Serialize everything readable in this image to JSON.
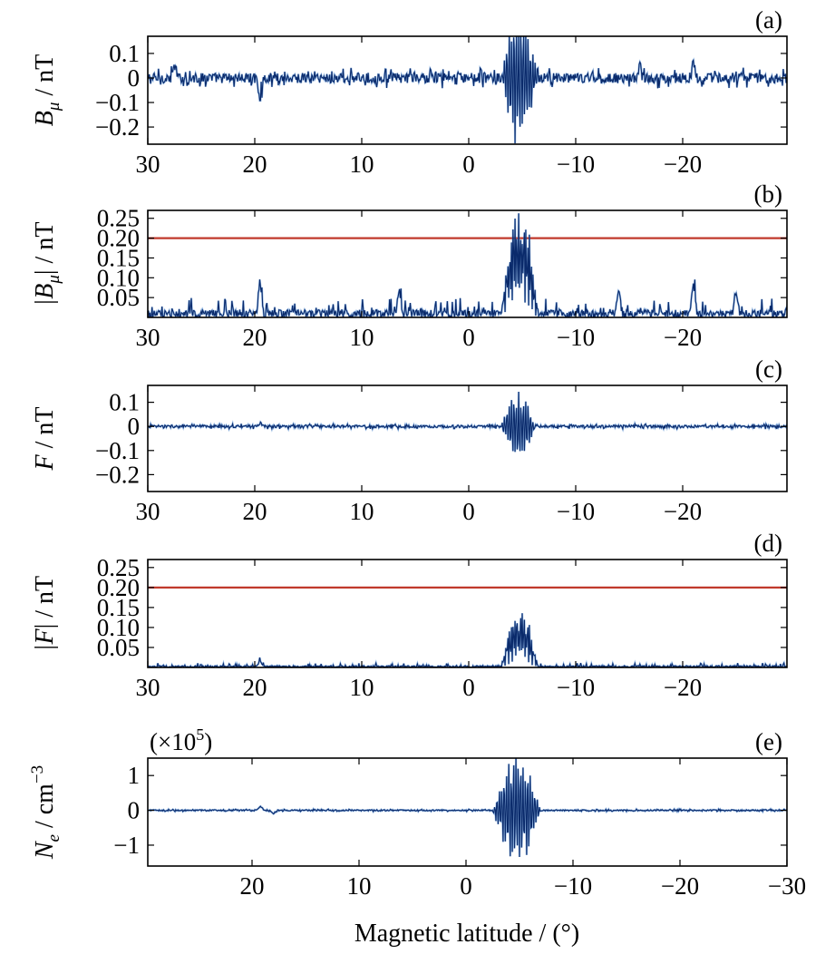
{
  "figure": {
    "xlabel": "Magnetic latitude / (°)"
  },
  "colors": {
    "trace": "#0a2a6b",
    "trace_light": "#3d7fd0",
    "threshold": "#c0392b"
  },
  "chart_data": [
    {
      "id": "a",
      "type": "line",
      "panel_label": "(a)",
      "ylabel_main": "B",
      "ylabel_sub": "μ",
      "ylabel_rest": " / nT",
      "xlim": [
        30,
        -30
      ],
      "ylim": [
        -0.27,
        0.17
      ],
      "xticks": [
        30,
        20,
        10,
        0,
        -10,
        -20
      ],
      "xtick_labels": [
        "30",
        "20",
        "10",
        "0",
        "−10",
        "−20"
      ],
      "yticks": [
        0.1,
        0,
        -0.1,
        -0.2
      ],
      "ytick_labels": [
        "0.1",
        "0",
        "−0.1",
        "−0.2"
      ],
      "signal": "signed",
      "noise_amp": 0.035,
      "burst_amp": 0.26,
      "burst_range": [
        -3,
        -6.5
      ],
      "spikes": [
        {
          "x": 19.5,
          "y": -0.08
        },
        {
          "x": 27.5,
          "y": 0.05
        },
        {
          "x": -21,
          "y": 0.07
        },
        {
          "x": -16,
          "y": 0.05
        }
      ],
      "threshold": null
    },
    {
      "id": "b",
      "type": "line",
      "panel_label": "(b)",
      "ylabel_main": "|B",
      "ylabel_sub": "μ",
      "ylabel_rest": "| / nT",
      "xlim": [
        30,
        -30
      ],
      "ylim": [
        0,
        0.27
      ],
      "xticks": [
        30,
        20,
        10,
        0,
        -10,
        -20
      ],
      "xtick_labels": [
        "30",
        "20",
        "10",
        "0",
        "−10",
        "−20"
      ],
      "yticks": [
        0.25,
        0.2,
        0.15,
        0.1,
        0.05
      ],
      "ytick_labels": [
        "0.25",
        "0.20",
        "0.15",
        "0.10",
        "0.05"
      ],
      "signal": "abs",
      "noise_amp": 0.035,
      "burst_amp": 0.26,
      "burst_range": [
        -3,
        -6.5
      ],
      "spikes": [
        {
          "x": 19.5,
          "y": 0.085
        },
        {
          "x": 6.5,
          "y": 0.06
        },
        {
          "x": -21,
          "y": 0.08
        },
        {
          "x": -14,
          "y": 0.06
        },
        {
          "x": -25,
          "y": 0.06
        }
      ],
      "threshold": 0.2
    },
    {
      "id": "c",
      "type": "line",
      "panel_label": "(c)",
      "ylabel_main": "F",
      "ylabel_sub": "",
      "ylabel_rest": " / nT",
      "xlim": [
        30,
        -30
      ],
      "ylim": [
        -0.27,
        0.17
      ],
      "xticks": [
        30,
        20,
        10,
        0,
        -10,
        -20
      ],
      "xtick_labels": [
        "30",
        "20",
        "10",
        "0",
        "−10",
        "−20"
      ],
      "yticks": [
        0.1,
        0,
        -0.1,
        -0.2
      ],
      "ytick_labels": [
        "0.1",
        "0",
        "−0.1",
        "−0.2"
      ],
      "signal": "signed",
      "noise_amp": 0.009,
      "burst_amp": 0.14,
      "burst_range": [
        -3,
        -6.2
      ],
      "spikes": [
        {
          "x": 19.5,
          "y": 0.015
        }
      ],
      "threshold": null
    },
    {
      "id": "d",
      "type": "line",
      "panel_label": "(d)",
      "ylabel_main": "|F",
      "ylabel_sub": "",
      "ylabel_rest": "| / nT",
      "xlim": [
        30,
        -30
      ],
      "ylim": [
        0,
        0.27
      ],
      "xticks": [
        30,
        20,
        10,
        0,
        -10,
        -20
      ],
      "xtick_labels": [
        "30",
        "20",
        "10",
        "0",
        "−10",
        "−20"
      ],
      "yticks": [
        0.25,
        0.2,
        0.15,
        0.1,
        0.05
      ],
      "ytick_labels": [
        "0.25",
        "0.20",
        "0.15",
        "0.10",
        "0.05"
      ],
      "signal": "abs",
      "noise_amp": 0.008,
      "burst_amp": 0.14,
      "burst_range": [
        -3,
        -6.5
      ],
      "spikes": [
        {
          "x": 19.5,
          "y": 0.015
        }
      ],
      "threshold": 0.2
    },
    {
      "id": "e",
      "type": "line",
      "panel_label": "(e)",
      "ylabel_main": "N",
      "ylabel_sub": "e",
      "ylabel_rest": " / cm",
      "ylabel_sup": "−3",
      "scale_note": "(×10",
      "scale_note_sup": "5",
      "scale_note_end": ")",
      "xlim": [
        30,
        -30
      ],
      "ylim": [
        -1.6,
        1.5
      ],
      "xticks": [
        20,
        10,
        0,
        -10,
        -20,
        -30
      ],
      "xtick_labels": [
        "20",
        "10",
        "0",
        "−10",
        "−20",
        "−30"
      ],
      "yticks": [
        1,
        0,
        -1
      ],
      "ytick_labels": [
        "1",
        "0",
        "−1"
      ],
      "signal": "signed",
      "noise_amp": 0.03,
      "burst_amp": 1.5,
      "burst_range": [
        -2.5,
        -7
      ],
      "spikes": [
        {
          "x": 19.2,
          "y": 0.12
        },
        {
          "x": 18,
          "y": -0.1
        }
      ],
      "threshold": null
    }
  ]
}
